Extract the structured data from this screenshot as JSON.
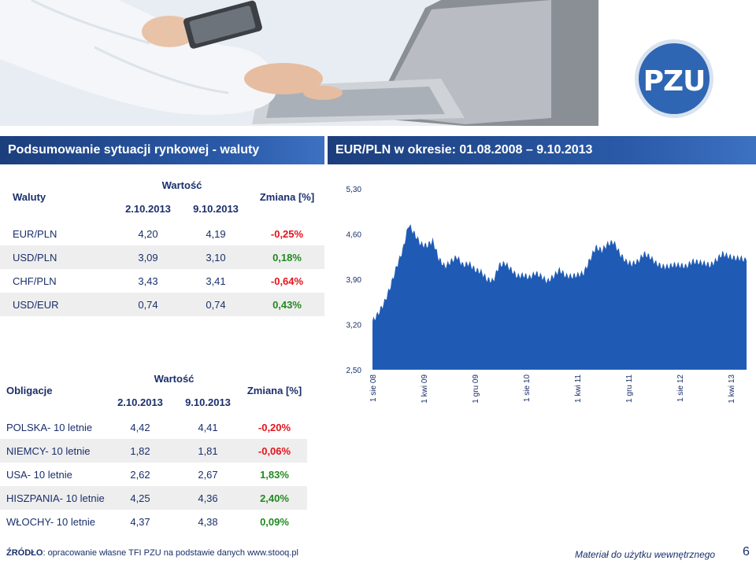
{
  "logo": {
    "text": "PZU"
  },
  "currency_section": {
    "title": "Podsumowanie sytuacji rynkowej - waluty",
    "col_label": "Waluty",
    "value_header": "Wartość",
    "date1": "2.10.2013",
    "date2": "9.10.2013",
    "change_header": "Zmiana [%]",
    "rows": [
      {
        "name": "EUR/PLN",
        "v1": "4,20",
        "v2": "4,19",
        "chg": "-0,25%"
      },
      {
        "name": "USD/PLN",
        "v1": "3,09",
        "v2": "3,10",
        "chg": "0,18%"
      },
      {
        "name": "CHF/PLN",
        "v1": "3,43",
        "v2": "3,41",
        "chg": "-0,64%"
      },
      {
        "name": "USD/EUR",
        "v1": "0,74",
        "v2": "0,74",
        "chg": "0,43%"
      }
    ]
  },
  "bond_section": {
    "col_label": "Obligacje",
    "value_header": "Wartość",
    "date1": "2.10.2013",
    "date2": "9.10.2013",
    "change_header": "Zmiana [%]",
    "rows": [
      {
        "name": "POLSKA- 10 letnie",
        "v1": "4,42",
        "v2": "4,41",
        "chg": "-0,20%"
      },
      {
        "name": "NIEMCY- 10 letnie",
        "v1": "1,82",
        "v2": "1,81",
        "chg": "-0,06%"
      },
      {
        "name": "USA- 10 letnie",
        "v1": "2,62",
        "v2": "2,67",
        "chg": "1,83%"
      },
      {
        "name": "HISZPANIA- 10 letnie",
        "v1": "4,25",
        "v2": "4,36",
        "chg": "2,40%"
      },
      {
        "name": "WŁOCHY- 10 letnie",
        "v1": "4,37",
        "v2": "4,38",
        "chg": "0,09%"
      }
    ]
  },
  "chart_title": "EUR/PLN w okresie: 01.08.2008 – 9.10.2013",
  "chart_data": {
    "type": "area",
    "title": "EUR/PLN w okresie: 01.08.2008 – 9.10.2013",
    "ylim": [
      2.5,
      5.3
    ],
    "yticks": [
      "5,30",
      "4,60",
      "3,90",
      "3,20",
      "2,50"
    ],
    "ytick_values": [
      5.3,
      4.6,
      3.9,
      3.2,
      2.5
    ],
    "xticks": [
      "1 sie 08",
      "1 kwi 09",
      "1 gru 09",
      "1 sie 10",
      "1 kwi 11",
      "1 gru 11",
      "1 sie 12",
      "1 kwi 13"
    ],
    "x": [
      "2008-08",
      "2008-09",
      "2008-10",
      "2008-11",
      "2008-12",
      "2009-01",
      "2009-02",
      "2009-03",
      "2009-04",
      "2009-05",
      "2009-06",
      "2009-07",
      "2009-08",
      "2009-09",
      "2009-10",
      "2009-11",
      "2009-12",
      "2010-01",
      "2010-02",
      "2010-03",
      "2010-04",
      "2010-05",
      "2010-06",
      "2010-07",
      "2010-08",
      "2010-09",
      "2010-10",
      "2010-11",
      "2010-12",
      "2011-01",
      "2011-02",
      "2011-03",
      "2011-04",
      "2011-05",
      "2011-06",
      "2011-07",
      "2011-08",
      "2011-09",
      "2011-10",
      "2011-11",
      "2011-12",
      "2012-01",
      "2012-02",
      "2012-03",
      "2012-04",
      "2012-05",
      "2012-06",
      "2012-07",
      "2012-08",
      "2012-09",
      "2012-10",
      "2012-11",
      "2012-12",
      "2013-01",
      "2013-02",
      "2013-03",
      "2013-04",
      "2013-05",
      "2013-06",
      "2013-07",
      "2013-08",
      "2013-09",
      "2013-10"
    ],
    "values": [
      3.25,
      3.38,
      3.55,
      3.8,
      4.1,
      4.35,
      4.75,
      4.6,
      4.45,
      4.42,
      4.5,
      4.22,
      4.1,
      4.18,
      4.25,
      4.12,
      4.15,
      4.05,
      4.02,
      3.9,
      3.88,
      4.12,
      4.15,
      4.05,
      3.95,
      3.97,
      3.93,
      4.0,
      3.95,
      3.87,
      3.95,
      4.05,
      3.96,
      3.95,
      3.97,
      4.0,
      4.2,
      4.4,
      4.35,
      4.45,
      4.48,
      4.3,
      4.18,
      4.14,
      4.18,
      4.3,
      4.25,
      4.15,
      4.1,
      4.1,
      4.13,
      4.12,
      4.1,
      4.18,
      4.17,
      4.15,
      4.12,
      4.2,
      4.3,
      4.26,
      4.23,
      4.23,
      4.19
    ],
    "fill_color": "#1f5bb5",
    "grid": false
  },
  "footer": {
    "source_label": "ŹRÓDŁO",
    "source_text": ": opracowanie własne TFI PZU na podstawie danych www.stooq.pl",
    "note": "Materiał do użytku wewnętrznego",
    "page_number": "6"
  }
}
